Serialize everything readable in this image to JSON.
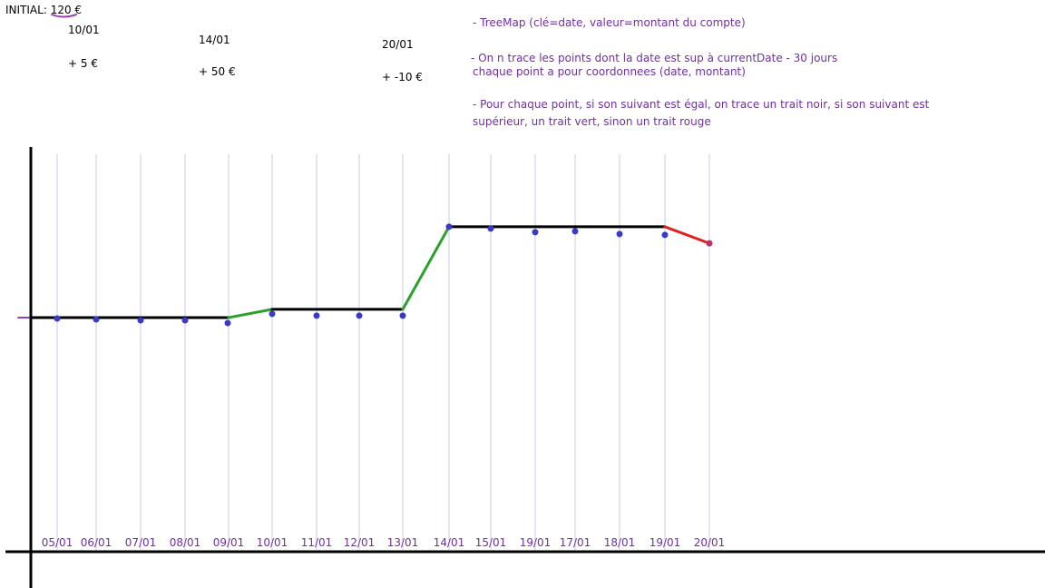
{
  "initial": {
    "label": "INITIAL:",
    "value": "120 €"
  },
  "events": [
    {
      "date": "10/01",
      "delta": "+ 5 €"
    },
    {
      "date": "14/01",
      "delta": "+ 50 €"
    },
    {
      "date": "20/01",
      "delta": "+ -10 €"
    }
  ],
  "notes": {
    "treemap": "- TreeMap (clé=date, valeur=montant du compte)",
    "filter_line1": "- On n trace les points dont la date est sup à currentDate - 30 jours",
    "filter_line2": "chaque point a pour coordonnees (date, montant)",
    "rule_line1": "- Pour chaque point, si son suivant est égal, on trace un trait noir, si son suivant est",
    "rule_line2": "supérieur, un trait vert, sinon un trait rouge"
  },
  "colors": {
    "annotation": "#7030a0",
    "axis": "#000000",
    "gridline": "#c8c8e8",
    "point": "#3a3ac8",
    "equal_line": "#000000",
    "up_line": "#2ca02c",
    "down_line": "#e02020",
    "last_point": "#c0306a"
  },
  "chart_data": {
    "type": "line",
    "x_labels": [
      "05/01",
      "06/01",
      "07/01",
      "08/01",
      "09/01",
      "10/01",
      "11/01",
      "12/01",
      "13/01",
      "14/01",
      "15/01",
      "19/01",
      "17/01",
      "18/01",
      "19/01",
      "20/01"
    ],
    "values": [
      120,
      120,
      120,
      120,
      120,
      125,
      125,
      125,
      125,
      175,
      175,
      175,
      175,
      175,
      175,
      165
    ],
    "segment_colors": [
      "equal",
      "equal",
      "equal",
      "equal",
      "up",
      "equal",
      "equal",
      "equal",
      "up",
      "equal",
      "equal",
      "equal",
      "equal",
      "equal",
      "down"
    ],
    "ylim": [
      70,
      200
    ]
  }
}
